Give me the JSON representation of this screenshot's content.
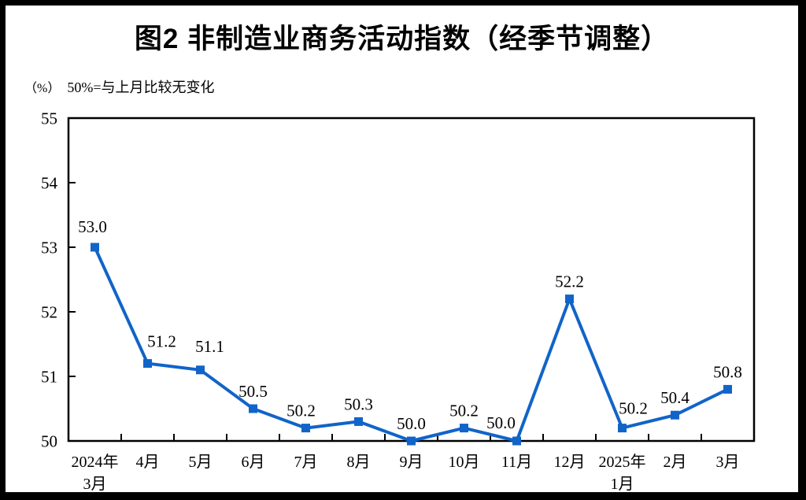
{
  "page": {
    "background_color": "#ffffff",
    "frame_color": "#000000"
  },
  "title": "图2 非制造业商务活动指数（经季节调整）",
  "subtitle": {
    "unit": "（%）",
    "note": "50%=与上月比较无变化"
  },
  "chart_data": {
    "type": "line",
    "title": "图2 非制造业商务活动指数（经季节调整）",
    "unit_label": "（%）",
    "reference_note": "50%=与上月比较无变化",
    "categories": [
      "2024年\n3月",
      "4月",
      "5月",
      "6月",
      "7月",
      "8月",
      "9月",
      "10月",
      "11月",
      "12月",
      "2025年\n1月",
      "2月",
      "3月"
    ],
    "values": [
      53.0,
      51.2,
      51.1,
      50.5,
      50.2,
      50.3,
      50.0,
      50.2,
      50.0,
      52.2,
      50.2,
      50.4,
      50.8
    ],
    "data_labels": [
      "53.0",
      "51.2",
      "51.1",
      "50.5",
      "50.2",
      "50.3",
      "50.0",
      "50.2",
      "50.0",
      "52.2",
      "50.2",
      "50.4",
      "50.8"
    ],
    "ylim": [
      50,
      55
    ],
    "yticks": [
      50,
      51,
      52,
      53,
      54,
      55
    ],
    "xlabel": "",
    "ylabel": "",
    "grid": false,
    "legend": "none",
    "line_color": "#1164c8",
    "marker_color": "#1164c8",
    "marker_shape": "square",
    "axis_color": "#000000"
  }
}
